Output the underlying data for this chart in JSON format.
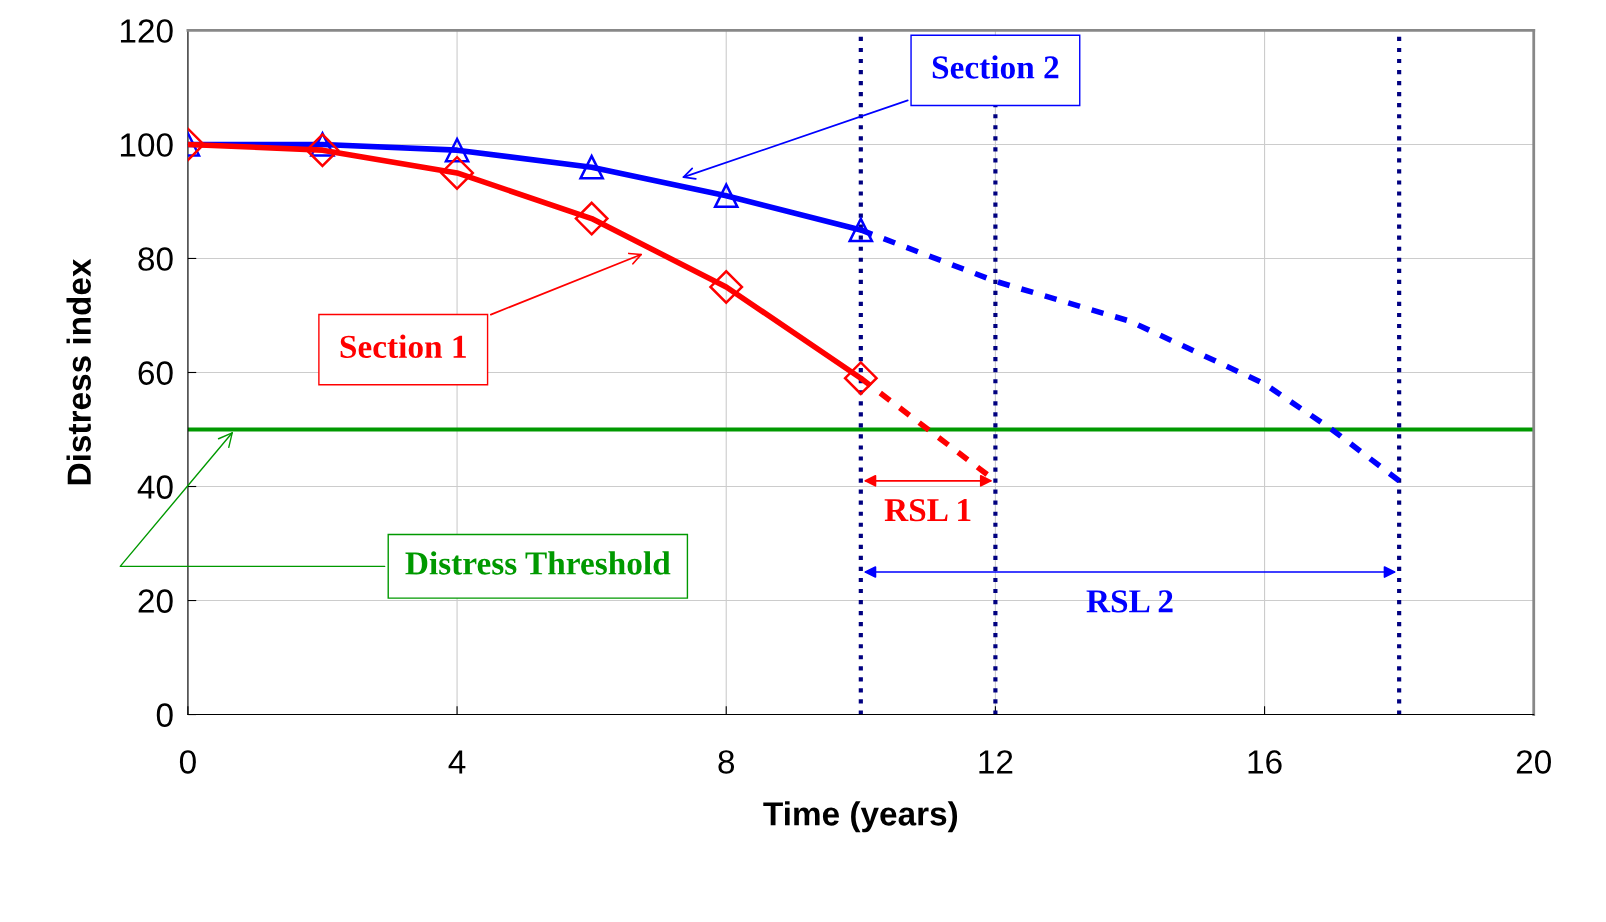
{
  "chart_data": {
    "type": "line",
    "xlabel": "Time (years)",
    "ylabel": "Distress index",
    "xlim": [
      0,
      20
    ],
    "xticks": [
      0,
      4,
      8,
      12,
      16,
      20
    ],
    "ylim": [
      0,
      120
    ],
    "yticks": [
      0,
      20,
      40,
      60,
      80,
      100,
      120
    ],
    "grid": true,
    "series": [
      {
        "name": "Section 1",
        "color": "#ff0000",
        "marker": "diamond",
        "line_style": "solid",
        "x": [
          0,
          2,
          4,
          6,
          8,
          10
        ],
        "values": [
          100,
          99,
          95,
          87,
          75,
          59
        ]
      },
      {
        "color": "#ff0000",
        "marker": "none",
        "line_style": "dashed",
        "x": [
          10,
          11,
          12
        ],
        "values": [
          59,
          50,
          41
        ]
      },
      {
        "name": "Section 2",
        "color": "#0000ff",
        "marker": "triangle",
        "line_style": "solid",
        "x": [
          0,
          2,
          4,
          6,
          8,
          10
        ],
        "values": [
          100,
          100,
          99,
          96,
          91,
          85
        ]
      },
      {
        "color": "#0000ff",
        "marker": "none",
        "line_style": "dashed",
        "x": [
          10,
          12,
          14,
          16,
          17,
          18
        ],
        "values": [
          85,
          76,
          69,
          58,
          50,
          41
        ]
      }
    ],
    "ref_lines": [
      {
        "axis": "y",
        "value": 50,
        "label": "Distress Threshold",
        "color": "#009900",
        "line_style": "solid"
      },
      {
        "axis": "x",
        "value": 10,
        "label": null,
        "color": "#000080",
        "line_style": "dotted"
      },
      {
        "axis": "x",
        "value": 12,
        "label": null,
        "color": "#000080",
        "line_style": "dotted"
      },
      {
        "axis": "x",
        "value": 18,
        "label": null,
        "color": "#000080",
        "line_style": "dotted"
      }
    ],
    "annotations": [
      "RSL 1",
      "RSL 2"
    ]
  }
}
